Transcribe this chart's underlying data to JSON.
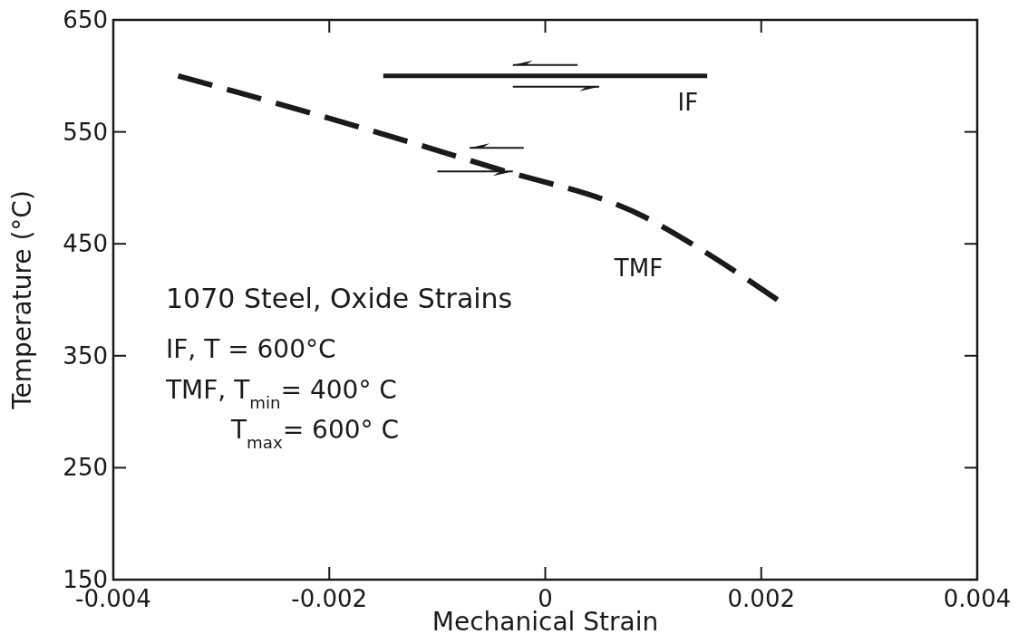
{
  "chart_data": {
    "type": "line",
    "xlabel": "Mechanical Strain",
    "ylabel": "Temperature (°C)",
    "xlim": [
      -0.004,
      0.004
    ],
    "xticks": [
      {
        "value": -0.004,
        "label": "-0.004"
      },
      {
        "value": -0.002,
        "label": "-0.002"
      },
      0,
      {
        "value": 0.002,
        "label": "0.002"
      },
      {
        "value": 0.004,
        "label": "0.004"
      }
    ],
    "ylim": [
      150,
      650
    ],
    "yticks": [
      150,
      250,
      350,
      450,
      550,
      650
    ],
    "grid": false,
    "series": [
      {
        "name": "IF",
        "color": "#1a1a1a",
        "line_style": "solid",
        "x": [
          -0.0015,
          0.0015
        ],
        "values": [
          600,
          600
        ]
      },
      {
        "name": "TMF",
        "color": "#1a1a1a",
        "line_style": "dashed",
        "x": [
          -0.0034,
          -0.00225,
          -0.00048,
          0.00092,
          0.00139,
          0.00215
        ],
        "values": [
          600,
          569,
          518,
          474,
          448,
          400
        ]
      }
    ],
    "annotations": [
      "1070 Steel, Oxide Strains",
      "IF, T = 600°C",
      "TMF, T$_{min}$= 400° C",
      "T$_{max}$= 600° C"
    ]
  }
}
